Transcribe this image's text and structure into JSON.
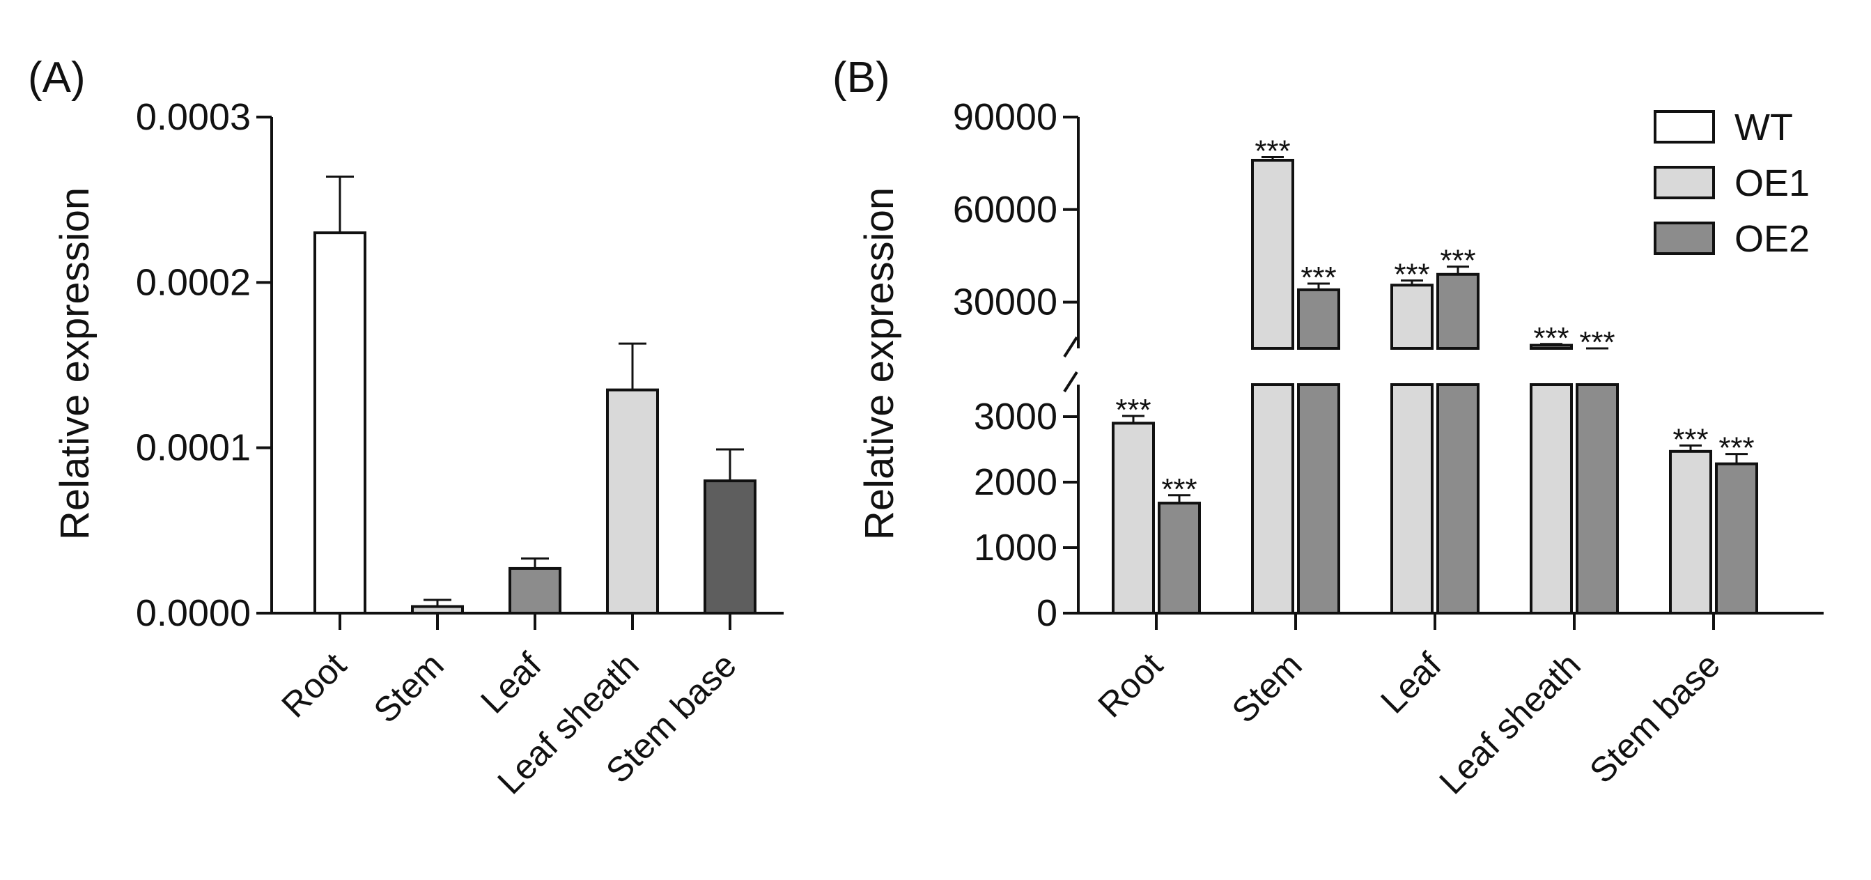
{
  "panel_a_label": "(A)",
  "panel_b_label": "(B)",
  "chart_data": [
    {
      "type": "bar",
      "panel": "(A)",
      "ylabel": "Relative expression",
      "xlabel": "",
      "categories": [
        "Root",
        "Stem",
        "Leaf",
        "Leaf sheath",
        "Stem base"
      ],
      "values": [
        0.00023,
        4e-06,
        2.7e-05,
        0.000135,
        8e-05
      ],
      "errors": [
        3.4e-05,
        4e-06,
        6e-06,
        2.8e-05,
        1.9e-05
      ],
      "bar_colors": [
        "#ffffff",
        "#d4d4d4",
        "#8c8c8c",
        "#d9d9d9",
        "#5e5e5e"
      ],
      "ylim": [
        0,
        0.0003
      ],
      "yticks": [
        0,
        0.0001,
        0.0002,
        0.0003
      ],
      "ytick_labels": [
        "0.0000",
        "0.0001",
        "0.0002",
        "0.0003"
      ]
    },
    {
      "type": "bar",
      "panel": "(B)",
      "ylabel": "Relative expression",
      "xlabel": "",
      "categories": [
        "Root",
        "Stem",
        "Leaf",
        "Leaf sheath",
        "Stem base"
      ],
      "series": [
        {
          "name": "WT",
          "color": "#ffffff",
          "values": [
            0,
            0,
            0,
            0,
            0
          ],
          "errors": [
            0,
            0,
            0,
            0,
            0
          ],
          "significance": [
            "",
            "",
            "",
            "",
            ""
          ]
        },
        {
          "name": "OE1",
          "color": "#d9d9d9",
          "values": [
            2900,
            76000,
            35500,
            16000,
            2470
          ],
          "errors": [
            110,
            1000,
            1500,
            400,
            90
          ],
          "significance": [
            "***",
            "***",
            "***",
            "***",
            "***"
          ]
        },
        {
          "name": "OE2",
          "color": "#8c8c8c",
          "values": [
            1680,
            34000,
            39000,
            6500,
            2280
          ],
          "errors": [
            120,
            2000,
            2500,
            600,
            150
          ],
          "significance": [
            "***",
            "***",
            "***",
            "***",
            "***"
          ]
        }
      ],
      "axis_break": [
        3500,
        15000
      ],
      "ylim_lower": [
        0,
        3500
      ],
      "ylim_upper": [
        15000,
        90000
      ],
      "yticks_lower": [
        0,
        1000,
        2000,
        3000
      ],
      "ytick_labels_lower": [
        "0",
        "1000",
        "2000",
        "3000"
      ],
      "yticks_upper": [
        30000,
        60000,
        90000
      ],
      "ytick_labels_upper": [
        "30000",
        "60000",
        "90000"
      ],
      "legend": [
        "WT",
        "OE1",
        "OE2"
      ],
      "legend_position": "top-right"
    }
  ]
}
